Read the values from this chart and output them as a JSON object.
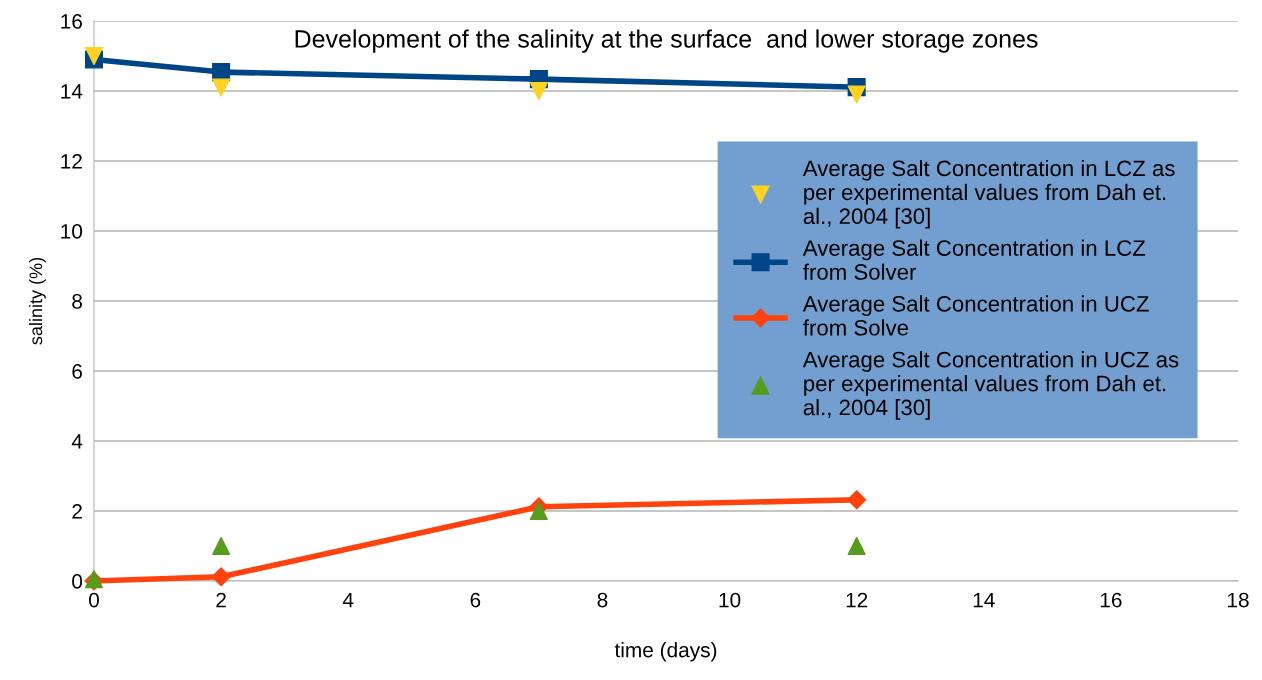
{
  "chart_data": {
    "type": "line",
    "title": "Development of the salinity at the surface  and lower storage zones",
    "xlabel": "time (days)",
    "ylabel": "salinity (%)",
    "x": [
      0,
      2,
      7,
      12
    ],
    "series": [
      {
        "name": "Average Salt Concentration in LCZ as per experimental values from Dah et. al., 2004 [30]",
        "type": "scatter",
        "marker": "triangle_down",
        "color": "#ffd320",
        "values": [
          15.0,
          14.1,
          14.0,
          13.9
        ]
      },
      {
        "name": "Average Salt Concentration in LCZ from Solver",
        "marker": "square",
        "color": "#004586",
        "values": [
          14.9,
          14.54,
          14.34,
          14.11
        ]
      },
      {
        "name": "Average Salt Concentration in UCZ from Solve",
        "marker": "diamond",
        "color": "#ff420e",
        "values": [
          0.0,
          0.12,
          2.12,
          2.32
        ]
      },
      {
        "name": "Average Salt Concentration in UCZ as per experimental values from Dah et. al., 2004 [30]",
        "type": "scatter",
        "marker": "triangle",
        "color": "#579d1c",
        "values": [
          0.05,
          1.0,
          2.0,
          1.0
        ]
      }
    ],
    "xlim": [
      0,
      18
    ],
    "xticks": [
      0,
      2,
      4,
      6,
      8,
      10,
      12,
      14,
      16,
      18
    ],
    "ylim": [
      0,
      16
    ],
    "yticks": [
      0,
      2,
      4,
      6,
      8,
      10,
      12,
      14,
      16
    ],
    "grid": "y",
    "legend": "right"
  }
}
